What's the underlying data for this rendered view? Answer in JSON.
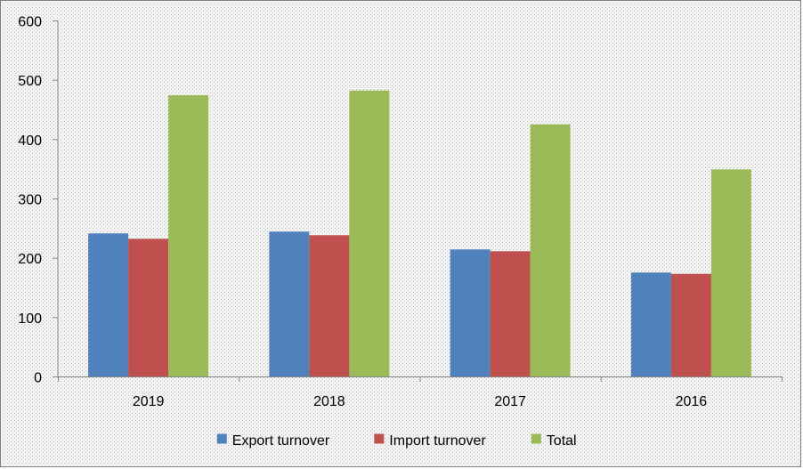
{
  "chart_data": {
    "type": "bar",
    "title": "",
    "xlabel": "",
    "ylabel": "",
    "categories": [
      "2019",
      "2018",
      "2017",
      "2016"
    ],
    "series": [
      {
        "name": "Export turnover",
        "color": "#4f81bd",
        "values": [
          241,
          244,
          214,
          175
        ]
      },
      {
        "name": "Import turnover",
        "color": "#c0504d",
        "values": [
          232,
          238,
          211,
          173
        ]
      },
      {
        "name": "Total",
        "color": "#9bbb59",
        "values": [
          474,
          482,
          425,
          349
        ]
      }
    ],
    "ylim": [
      0,
      600
    ],
    "yticks": [
      0,
      100,
      200,
      300,
      400,
      500,
      600
    ],
    "grid": false,
    "legend_position": "bottom",
    "background": "dotted-gray"
  }
}
